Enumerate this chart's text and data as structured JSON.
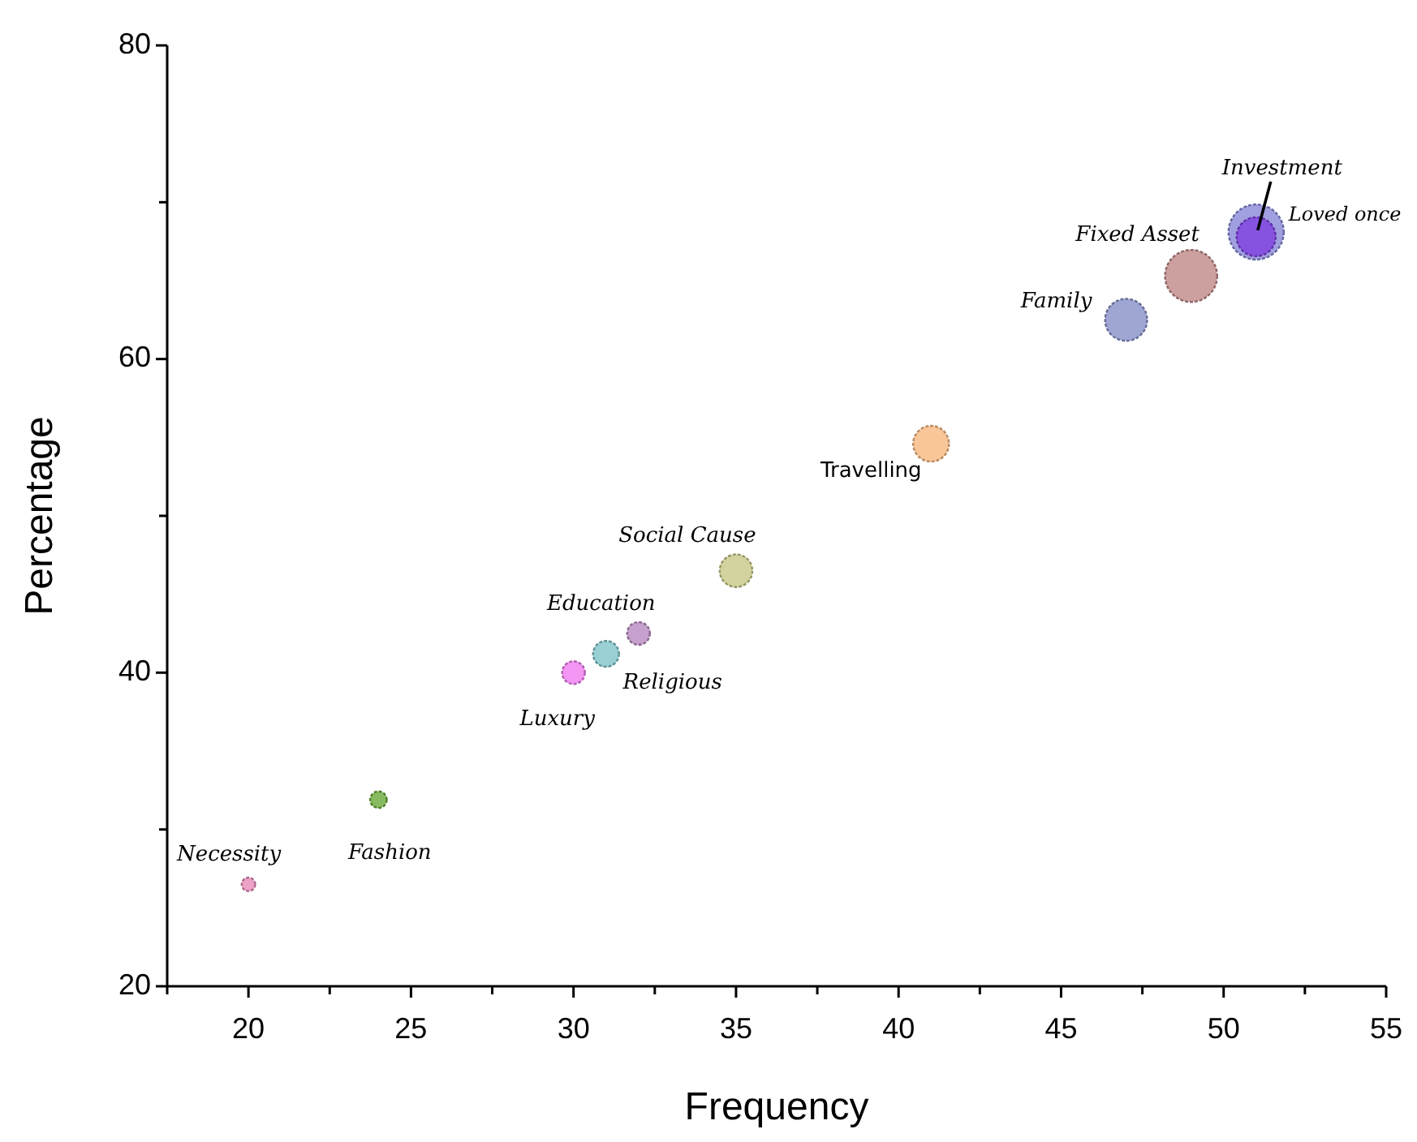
{
  "chart_data": {
    "type": "bubble",
    "xlabel": "Frequency",
    "ylabel": "Percentage",
    "xlim": [
      17.5,
      55
    ],
    "ylim": [
      20,
      80
    ],
    "xticks": [
      {
        "value": 17.5,
        "label": null
      },
      20,
      {
        "value": 22.5,
        "label": null
      },
      25,
      {
        "value": 27.5,
        "label": null
      },
      30,
      {
        "value": 32.5,
        "label": null
      },
      35,
      {
        "value": 37.5,
        "label": null
      },
      40,
      {
        "value": 42.5,
        "label": null
      },
      45,
      {
        "value": 47.5,
        "label": null
      },
      50,
      {
        "value": 52.5,
        "label": null
      },
      55
    ],
    "yticks": [
      20,
      {
        "value": 30,
        "label": null
      },
      40,
      {
        "value": 50,
        "label": null
      },
      60,
      {
        "value": 70,
        "label": null
      },
      80
    ],
    "grid": false,
    "series": [
      {
        "name": "Necessity",
        "color": "#e88ab8",
        "x": [
          20
        ],
        "values": [
          26.5
        ],
        "sizes": [
          0.06
        ]
      },
      {
        "name": "Fashion",
        "color": "#6aaa3a",
        "x": [
          24
        ],
        "values": [
          31.9
        ],
        "sizes": [
          0.09
        ]
      },
      {
        "name": "Luxury",
        "color": "#f07cf0",
        "x": [
          30
        ],
        "values": [
          40
        ],
        "sizes": [
          0.17
        ]
      },
      {
        "name": "Religious",
        "color": "#7fc4c8",
        "x": [
          31
        ],
        "values": [
          41.2
        ],
        "sizes": [
          0.22
        ]
      },
      {
        "name": "Education",
        "color": "#b98ac0",
        "x": [
          32
        ],
        "values": [
          42.5
        ],
        "sizes": [
          0.17
        ]
      },
      {
        "name": "Social Cause",
        "color": "#c8c888",
        "x": [
          35
        ],
        "values": [
          46.5
        ],
        "sizes": [
          0.35
        ]
      },
      {
        "name": "Travelling",
        "color": "#f8b880",
        "x": [
          41
        ],
        "values": [
          54.6
        ],
        "sizes": [
          0.42
        ]
      },
      {
        "name": "Family",
        "color": "#8890c8",
        "x": [
          47
        ],
        "values": [
          62.5
        ],
        "sizes": [
          0.58
        ]
      },
      {
        "name": "Fixed Asset",
        "color": "#c08888",
        "x": [
          49
        ],
        "values": [
          65.3
        ],
        "sizes": [
          0.89
        ]
      },
      {
        "name": "Loved once",
        "color": "#8888d8",
        "x": [
          51
        ],
        "values": [
          68.1
        ],
        "sizes": [
          1
        ]
      },
      {
        "name": "Investment",
        "color": "#8040e0",
        "x": [
          51
        ],
        "values": [
          67.8
        ],
        "sizes": [
          0.5
        ]
      }
    ]
  }
}
